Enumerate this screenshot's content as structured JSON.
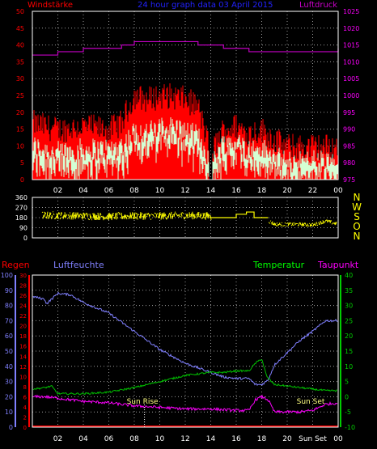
{
  "colors": {
    "background": "#000000",
    "panel_border": "#ffffff",
    "grid": "#9a9a9a",
    "wind_avg": "#d4ffd4",
    "wind_gust": "#ff0000",
    "pressure": "#c000c0",
    "direction": "#ffff00",
    "rain": "#ff0000",
    "humidity": "#8080ff",
    "temperature": "#00c000",
    "dewpoint": "#ff00ff",
    "sun_text": "#ffff80",
    "title": "#2222ff",
    "wind_title": "#ff0000",
    "pressure_title": "#cc00cc",
    "temp_title": "#00ff00",
    "dew_title": "#ff00ff",
    "rain_title": "#ff0000",
    "humidity_title": "#8080ff",
    "tick_left": "#ff0000",
    "tick_right": "#ff00ff",
    "tick_white": "#ffffff",
    "tick_temp": "#00cc00",
    "tick_hum": "#8080ff"
  },
  "header": {
    "title": "24 hour graph data  03 April 2015",
    "left_label": "Windstärke",
    "right_label": "Luftdruck"
  },
  "x_tick_labels": [
    "02",
    "04",
    "06",
    "08",
    "10",
    "12",
    "14",
    "16",
    "18",
    "20",
    "22",
    "00"
  ],
  "bottom_x_tick_labels": [
    "02",
    "04",
    "06",
    "08",
    "10",
    "12",
    "14",
    "16",
    "18",
    "20",
    "Sun Set",
    "00"
  ],
  "direction_labels": [
    "N",
    "W",
    "S",
    "O",
    "N"
  ],
  "lower_header": {
    "rain_label": "Regen",
    "humidity_label": "Luftfeuchte",
    "temperature_label": "Temperatur",
    "dewpoint_label": "Taupunkt"
  },
  "annotations": {
    "sun_rise": "Sun Rise",
    "sun_set": "Sun Set"
  },
  "chart_data": [
    {
      "type": "line",
      "title": "24 hour graph data  03 April 2015",
      "xlabel": "",
      "ylabel_left": "Windstärke",
      "ylabel_right": "Luftdruck",
      "x_ticks": [
        "02",
        "04",
        "06",
        "08",
        "10",
        "12",
        "14",
        "16",
        "18",
        "20",
        "22",
        "00"
      ],
      "y_left_ticks": [
        0,
        5,
        10,
        15,
        20,
        25,
        30,
        35,
        40,
        45,
        50
      ],
      "ylim_left": [
        0,
        50
      ],
      "y_right_ticks": [
        975,
        980,
        985,
        990,
        995,
        1000,
        1005,
        1010,
        1015,
        1020,
        1025
      ],
      "ylim_right": [
        975,
        1025
      ],
      "grid": true,
      "series": [
        {
          "name": "Windstärke",
          "axis": "left",
          "x_hours": [
            0,
            2,
            4,
            6,
            7,
            8,
            9,
            10,
            11,
            12,
            13,
            14,
            15,
            16,
            17,
            18,
            19,
            20,
            21,
            22,
            23,
            24
          ],
          "avg": [
            10,
            8,
            9,
            9,
            10,
            14,
            14,
            15,
            16,
            14,
            13,
            5,
            11,
            11,
            9,
            9,
            7,
            5,
            6,
            6,
            5,
            5
          ],
          "gust": [
            16,
            14,
            15,
            14,
            16,
            24,
            23,
            24,
            24,
            23,
            21,
            7,
            14,
            15,
            13,
            14,
            11,
            9,
            9,
            9,
            9,
            9
          ]
        },
        {
          "name": "Luftdruck",
          "axis": "right",
          "x_hours": [
            0,
            1,
            2,
            3,
            4,
            5,
            6,
            7,
            8,
            9,
            10,
            11,
            12,
            13,
            14,
            15,
            16,
            17,
            18,
            19,
            20,
            21,
            22,
            23,
            24
          ],
          "values": [
            1012,
            1012,
            1013,
            1013,
            1014,
            1014,
            1014,
            1015,
            1016,
            1016,
            1016,
            1016,
            1016,
            1015,
            1015,
            1014,
            1014,
            1013,
            1013,
            1013,
            1013,
            1013,
            1013,
            1013,
            1014
          ]
        }
      ]
    },
    {
      "type": "scatter",
      "title": "",
      "y_ticks": [
        0,
        90,
        180,
        270,
        360
      ],
      "ylim": [
        0,
        360
      ],
      "y_ticks_right": [
        "N",
        "W",
        "S",
        "O",
        "N"
      ],
      "grid": true,
      "series": [
        {
          "name": "",
          "x_hours": [
            0,
            2,
            4,
            6,
            8,
            10,
            12,
            13.9,
            14,
            15,
            16,
            17,
            18,
            19,
            20,
            21,
            22,
            23,
            24
          ],
          "values": [
            200,
            200,
            195,
            190,
            195,
            195,
            200,
            195,
            180,
            180,
            210,
            225,
            180,
            120,
            120,
            120,
            115,
            150,
            120
          ]
        }
      ]
    },
    {
      "type": "line",
      "title": "",
      "ylabel_rain": "Regen",
      "ylabel_humidity": "Luftfeuchte",
      "ylabel_temperature": "Temperatur",
      "ylabel_dewpoint": "Taupunkt",
      "x_ticks": [
        "02",
        "04",
        "06",
        "08",
        "10",
        "12",
        "14",
        "16",
        "18",
        "20",
        "Sun Set",
        "00"
      ],
      "y_humidity_ticks": [
        0,
        10,
        20,
        30,
        40,
        50,
        60,
        70,
        80,
        90,
        100
      ],
      "ylim_humidity": [
        0,
        100
      ],
      "y_rain_ticks": [
        0,
        2,
        4,
        6,
        8,
        10,
        12,
        14,
        16,
        18,
        20,
        22,
        24,
        26,
        28,
        30
      ],
      "ylim_rain": [
        0,
        30
      ],
      "y_temp_ticks": [
        -10,
        -5,
        0,
        5,
        10,
        15,
        20,
        25,
        30,
        35,
        40
      ],
      "ylim_temp": [
        -10,
        40
      ],
      "grid": true,
      "annotations": [
        {
          "text": "Sun Rise",
          "x_hour": 8.8
        },
        {
          "text": "Sun Set",
          "x_hour": 21.5
        }
      ],
      "series": [
        {
          "name": "Regen",
          "axis": "rain",
          "x_hours": [
            0,
            24
          ],
          "values": [
            0,
            0
          ]
        },
        {
          "name": "Luftfeuchte",
          "axis": "humidity",
          "x_hours": [
            0,
            1,
            1.1,
            2,
            3,
            4,
            6,
            8,
            10,
            12,
            14,
            15,
            16,
            17,
            17.5,
            18,
            18.5,
            19,
            20,
            21,
            22,
            23,
            24
          ],
          "values": [
            86,
            84,
            81,
            88,
            87,
            82,
            75,
            63,
            51,
            42,
            36,
            33,
            32,
            32,
            28,
            28,
            31,
            41,
            49,
            57,
            63,
            70,
            70
          ]
        },
        {
          "name": "Temperatur",
          "axis": "temp",
          "x_hours": [
            0,
            1,
            1.5,
            2,
            4,
            6,
            8,
            10,
            12,
            14,
            15,
            16,
            17,
            17.5,
            18,
            18.4,
            19,
            20,
            21,
            22,
            23,
            24
          ],
          "values": [
            2.5,
            3,
            3.5,
            1,
            1,
            1.5,
            3,
            5,
            7,
            8,
            8,
            8.5,
            8.5,
            11,
            12.5,
            6.5,
            4,
            3.5,
            3,
            2.5,
            2,
            2
          ]
        },
        {
          "name": "Taupunkt",
          "axis": "temp",
          "x_hours": [
            0,
            1,
            2,
            4,
            6,
            8,
            10,
            12,
            14,
            16,
            17,
            17.5,
            18,
            18.5,
            19,
            20,
            21,
            22,
            23,
            24
          ],
          "values": [
            0,
            0,
            -0.5,
            -1.5,
            -2,
            -3,
            -3.5,
            -4,
            -4,
            -4.5,
            -4.5,
            -1,
            0,
            -1,
            -5,
            -5,
            -5,
            -4.5,
            -2.5,
            -2
          ]
        }
      ]
    }
  ]
}
